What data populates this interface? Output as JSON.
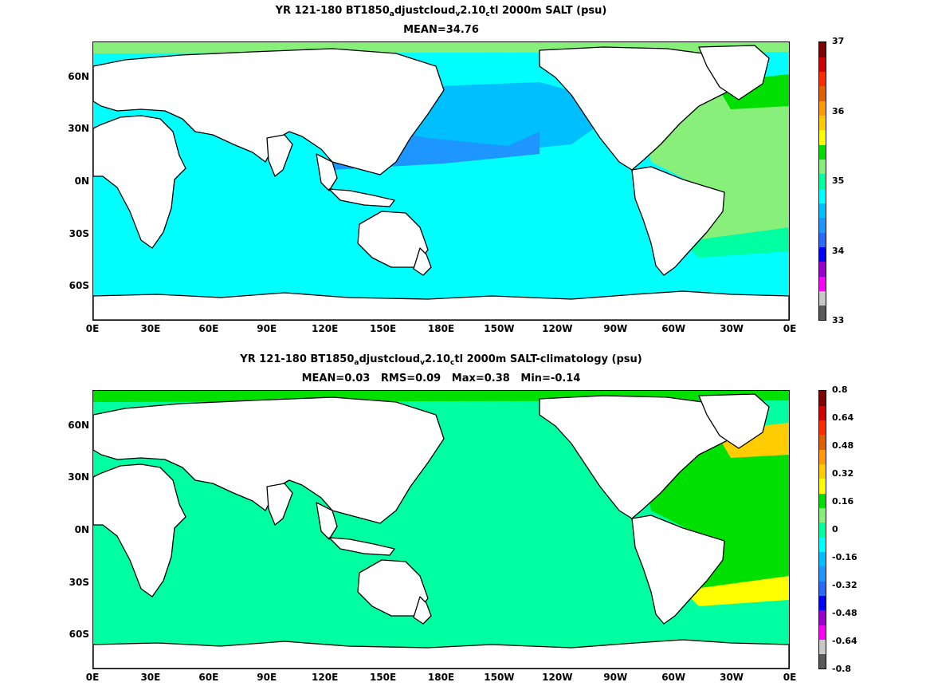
{
  "panels": [
    {
      "title_parts": [
        "YR 121-180 BT1850",
        "a",
        "djustcloud",
        "v",
        "2.10",
        "c",
        "tl 2000m SALT (psu)"
      ],
      "subtitle": "MEAN=34.76",
      "colorbar": {
        "labels": [
          "37",
          "36",
          "35",
          "34",
          "33"
        ],
        "colors": [
          "#5a5a5a",
          "#c8c8c8",
          "#ff00ff",
          "#9b00d2",
          "#0000ff",
          "#2a6cff",
          "#1e96ff",
          "#00bfff",
          "#00ffff",
          "#00ffa0",
          "#88f07a",
          "#00e000",
          "#ffff00",
          "#ffcc00",
          "#ff9a00",
          "#e06000",
          "#ff2a00",
          "#d40000",
          "#800000"
        ]
      },
      "fills": {
        "southern_ocean": "#00ffff",
        "pacific_west": "#1e96ff",
        "pacific_north": "#00bfff",
        "tropics": "#00ffff",
        "atlantic": "#88f07a",
        "atlantic_band": "#00ffa0",
        "nordic": "#00e000",
        "arctic": "#88f07a"
      }
    },
    {
      "title_parts": [
        "YR 121-180 BT1850",
        "a",
        "djustcloud",
        "v",
        "2.10",
        "c",
        "tl 2000m SALT-climatology (psu)"
      ],
      "subtitle": "MEAN=0.03   RMS=0.09   Max=0.38   Min=-0.14",
      "colorbar": {
        "labels": [
          "0.8",
          "0.64",
          "0.48",
          "0.32",
          "0.16",
          "0",
          "-0.16",
          "-0.32",
          "-0.48",
          "-0.64",
          "-0.8"
        ],
        "colors": [
          "#5a5a5a",
          "#c8c8c8",
          "#ff00ff",
          "#9b00d2",
          "#0000ff",
          "#2a6cff",
          "#1e96ff",
          "#00bfff",
          "#00ffff",
          "#00ffa0",
          "#88f07a",
          "#00e000",
          "#ffff00",
          "#ffcc00",
          "#ff9a00",
          "#e06000",
          "#ff2a00",
          "#d40000",
          "#800000"
        ]
      },
      "fills": {
        "southern_ocean": "#00ffa0",
        "pacific_west": "#00ffa0",
        "pacific_north": "#00ffa0",
        "tropics": "#00ffa0",
        "atlantic": "#00e000",
        "atlantic_band": "#ffff00",
        "nordic": "#ffcc00",
        "arctic": "#00e000"
      }
    }
  ],
  "lat_labels": [
    "60N",
    "30N",
    "0N",
    "30S",
    "60S"
  ],
  "lon_labels": [
    "0E",
    "30E",
    "60E",
    "90E",
    "120E",
    "150E",
    "180E",
    "150W",
    "120W",
    "90W",
    "60W",
    "30W",
    "0E"
  ]
}
